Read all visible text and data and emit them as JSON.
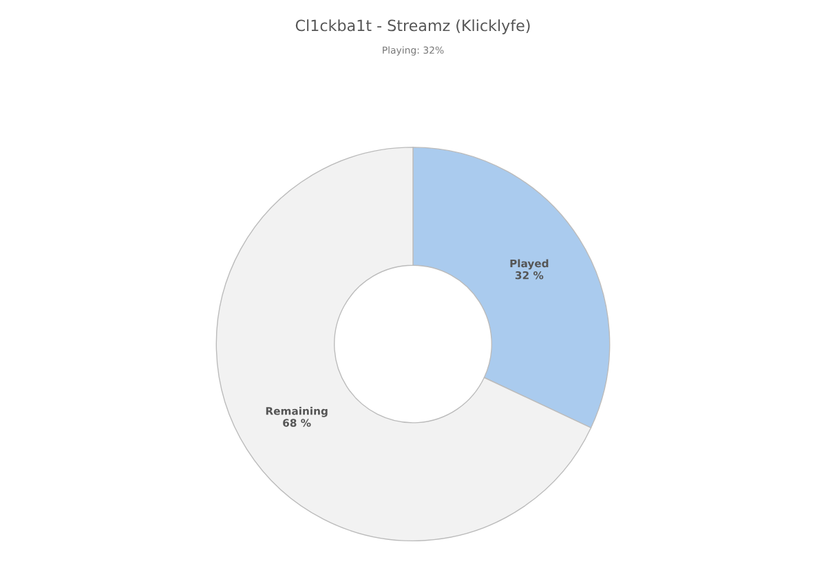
{
  "chart_data": {
    "type": "donut",
    "title": "Cl1ckba1t - Streamz (Klicklyfe)",
    "subtitle": "Playing: 32%",
    "categories": [
      "Played",
      "Remaining"
    ],
    "values": [
      32,
      68
    ],
    "colors": [
      "#aacbee",
      "#f2f2f2"
    ],
    "value_labels": [
      "32 %",
      "68 %"
    ],
    "legend": false
  }
}
